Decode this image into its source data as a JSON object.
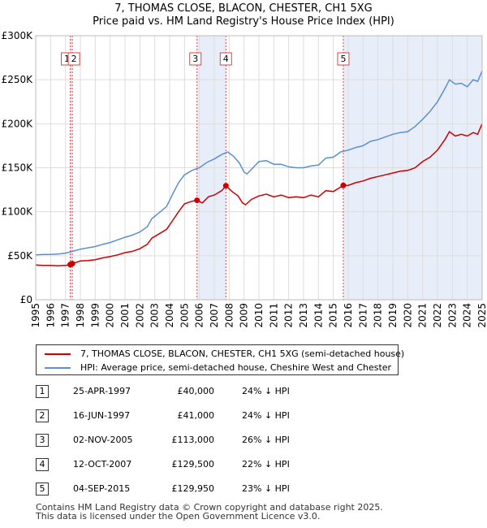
{
  "title_line1": "7, THOMAS CLOSE, BLACON, CHESTER, CH1 5XG",
  "title_line2": "Price paid vs. HM Land Registry's House Price Index (HPI)",
  "chart_data": {
    "type": "line",
    "title": "7, THOMAS CLOSE, BLACON, CHESTER, CH1 5XG — Price paid vs. HM Land Registry's House Price Index (HPI)",
    "xlabel": "",
    "ylabel": "",
    "xlim": [
      1995,
      2025
    ],
    "ylim": [
      0,
      300000
    ],
    "y_ticks": [
      0,
      50000,
      100000,
      150000,
      200000,
      250000,
      300000
    ],
    "y_tick_labels": [
      "£0",
      "£50K",
      "£100K",
      "£150K",
      "£200K",
      "£250K",
      "£300K"
    ],
    "x_ticks": [
      1995,
      1996,
      1997,
      1998,
      1999,
      2000,
      2001,
      2002,
      2003,
      2004,
      2005,
      2006,
      2007,
      2008,
      2009,
      2010,
      2011,
      2012,
      2013,
      2014,
      2015,
      2016,
      2017,
      2018,
      2019,
      2020,
      2021,
      2022,
      2023,
      2024,
      2025
    ],
    "x_tick_labels": [
      "1995",
      "1996",
      "1997",
      "1998",
      "1999",
      "2000",
      "2001",
      "2002",
      "2003",
      "2004",
      "2005",
      "2006",
      "2007",
      "2008",
      "2009",
      "2010",
      "2011",
      "2012",
      "2013",
      "2014",
      "2015",
      "2016",
      "2017",
      "2018",
      "2019",
      "2020",
      "2021",
      "2022",
      "2023",
      "2024",
      "2025"
    ],
    "grid": true,
    "legend_position": "below-chart",
    "shaded_periods": [
      [
        1997.32,
        1997.46
      ],
      [
        2005.84,
        2007.78
      ],
      [
        2015.67,
        2025.0
      ]
    ],
    "series": [
      {
        "name": "7, THOMAS CLOSE, BLACON, CHESTER, CH1 5XG (semi-detached house)",
        "color": "#cc0000",
        "points": [
          [
            1995.0,
            39500
          ],
          [
            1995.5,
            39000
          ],
          [
            1996.0,
            39000
          ],
          [
            1996.5,
            38500
          ],
          [
            1997.0,
            39000
          ],
          [
            1997.32,
            40000
          ],
          [
            1997.46,
            41000
          ],
          [
            1998.0,
            44000
          ],
          [
            1998.5,
            44500
          ],
          [
            1999.0,
            45500
          ],
          [
            1999.5,
            47500
          ],
          [
            2000.0,
            49000
          ],
          [
            2000.5,
            51000
          ],
          [
            2001.0,
            53500
          ],
          [
            2001.5,
            55000
          ],
          [
            2002.0,
            58000
          ],
          [
            2002.5,
            63000
          ],
          [
            2002.8,
            70000
          ],
          [
            2003.3,
            75000
          ],
          [
            2003.8,
            80000
          ],
          [
            2004.2,
            90000
          ],
          [
            2004.6,
            100000
          ],
          [
            2005.0,
            109000
          ],
          [
            2005.5,
            112000
          ],
          [
            2005.84,
            113000
          ],
          [
            2006.2,
            110000
          ],
          [
            2006.6,
            117000
          ],
          [
            2007.0,
            119000
          ],
          [
            2007.5,
            124000
          ],
          [
            2007.78,
            129500
          ],
          [
            2008.2,
            123000
          ],
          [
            2008.6,
            118000
          ],
          [
            2008.9,
            110000
          ],
          [
            2009.1,
            108000
          ],
          [
            2009.5,
            114000
          ],
          [
            2010.0,
            118000
          ],
          [
            2010.5,
            120000
          ],
          [
            2011.0,
            117000
          ],
          [
            2011.5,
            119000
          ],
          [
            2012.0,
            116000
          ],
          [
            2012.5,
            117000
          ],
          [
            2013.0,
            116000
          ],
          [
            2013.5,
            119000
          ],
          [
            2014.0,
            117000
          ],
          [
            2014.5,
            124000
          ],
          [
            2015.0,
            123000
          ],
          [
            2015.67,
            129950
          ],
          [
            2016.0,
            130000
          ],
          [
            2016.5,
            133000
          ],
          [
            2017.0,
            135000
          ],
          [
            2017.5,
            138000
          ],
          [
            2018.0,
            140000
          ],
          [
            2018.5,
            142000
          ],
          [
            2019.0,
            144000
          ],
          [
            2019.5,
            146000
          ],
          [
            2020.0,
            147000
          ],
          [
            2020.5,
            150000
          ],
          [
            2021.0,
            157000
          ],
          [
            2021.5,
            162000
          ],
          [
            2022.0,
            170000
          ],
          [
            2022.5,
            182000
          ],
          [
            2022.8,
            191000
          ],
          [
            2023.2,
            186000
          ],
          [
            2023.6,
            188000
          ],
          [
            2024.0,
            186000
          ],
          [
            2024.4,
            190000
          ],
          [
            2024.7,
            188000
          ],
          [
            2025.0,
            200000
          ]
        ]
      },
      {
        "name": "HPI: Average price, semi-detached house, Cheshire West and Chester",
        "color": "#5b8fcf",
        "points": [
          [
            1995.0,
            51000
          ],
          [
            1995.5,
            51500
          ],
          [
            1996.0,
            51500
          ],
          [
            1996.5,
            52000
          ],
          [
            1997.0,
            53000
          ],
          [
            1997.5,
            55000
          ],
          [
            1998.0,
            57500
          ],
          [
            1998.5,
            59000
          ],
          [
            1999.0,
            60500
          ],
          [
            1999.5,
            63000
          ],
          [
            2000.0,
            65000
          ],
          [
            2000.5,
            68000
          ],
          [
            2001.0,
            71000
          ],
          [
            2001.5,
            73500
          ],
          [
            2002.0,
            77000
          ],
          [
            2002.5,
            83000
          ],
          [
            2002.8,
            92000
          ],
          [
            2003.3,
            99000
          ],
          [
            2003.8,
            106000
          ],
          [
            2004.2,
            120000
          ],
          [
            2004.6,
            133000
          ],
          [
            2005.0,
            142000
          ],
          [
            2005.5,
            147000
          ],
          [
            2006.0,
            150000
          ],
          [
            2006.5,
            156000
          ],
          [
            2007.0,
            160000
          ],
          [
            2007.5,
            165000
          ],
          [
            2007.9,
            168000
          ],
          [
            2008.3,
            163000
          ],
          [
            2008.7,
            155000
          ],
          [
            2009.0,
            145000
          ],
          [
            2009.2,
            143000
          ],
          [
            2009.6,
            150000
          ],
          [
            2010.0,
            157000
          ],
          [
            2010.5,
            158000
          ],
          [
            2011.0,
            154000
          ],
          [
            2011.5,
            154000
          ],
          [
            2012.0,
            151000
          ],
          [
            2012.5,
            150000
          ],
          [
            2013.0,
            150000
          ],
          [
            2013.5,
            152000
          ],
          [
            2014.0,
            153000
          ],
          [
            2014.5,
            161000
          ],
          [
            2015.0,
            162000
          ],
          [
            2015.5,
            168000
          ],
          [
            2016.0,
            170000
          ],
          [
            2016.5,
            173000
          ],
          [
            2017.0,
            175000
          ],
          [
            2017.5,
            180000
          ],
          [
            2018.0,
            182000
          ],
          [
            2018.5,
            185000
          ],
          [
            2019.0,
            188000
          ],
          [
            2019.5,
            190000
          ],
          [
            2020.0,
            191000
          ],
          [
            2020.5,
            197000
          ],
          [
            2021.0,
            205000
          ],
          [
            2021.5,
            214000
          ],
          [
            2022.0,
            225000
          ],
          [
            2022.5,
            240000
          ],
          [
            2022.8,
            250000
          ],
          [
            2023.2,
            245000
          ],
          [
            2023.6,
            246000
          ],
          [
            2024.0,
            242000
          ],
          [
            2024.4,
            250000
          ],
          [
            2024.7,
            248000
          ],
          [
            2025.0,
            260000
          ]
        ]
      }
    ],
    "sales": [
      {
        "label": "1",
        "x": 1997.32,
        "y": 40000
      },
      {
        "label": "2",
        "x": 1997.46,
        "y": 41000
      },
      {
        "label": "3",
        "x": 2005.84,
        "y": 113000
      },
      {
        "label": "4",
        "x": 2007.78,
        "y": 129500
      },
      {
        "label": "5",
        "x": 2015.67,
        "y": 129950
      }
    ]
  },
  "legend": {
    "property_label": "7, THOMAS CLOSE, BLACON, CHESTER, CH1 5XG (semi-detached house)",
    "hpi_label": "HPI: Average price, semi-detached house, Cheshire West and Chester"
  },
  "transactions": [
    {
      "num": "1",
      "date": "25-APR-1997",
      "price": "£40,000",
      "hpi": "24% ↓ HPI"
    },
    {
      "num": "2",
      "date": "16-JUN-1997",
      "price": "£41,000",
      "hpi": "24% ↓ HPI"
    },
    {
      "num": "3",
      "date": "02-NOV-2005",
      "price": "£113,000",
      "hpi": "26% ↓ HPI"
    },
    {
      "num": "4",
      "date": "12-OCT-2007",
      "price": "£129,500",
      "hpi": "22% ↓ HPI"
    },
    {
      "num": "5",
      "date": "04-SEP-2015",
      "price": "£129,950",
      "hpi": "23% ↓ HPI"
    }
  ],
  "footer": {
    "line1": "Contains HM Land Registry data © Crown copyright and database right 2025.",
    "line2": "This data is licensed under the Open Government Licence v3.0."
  }
}
